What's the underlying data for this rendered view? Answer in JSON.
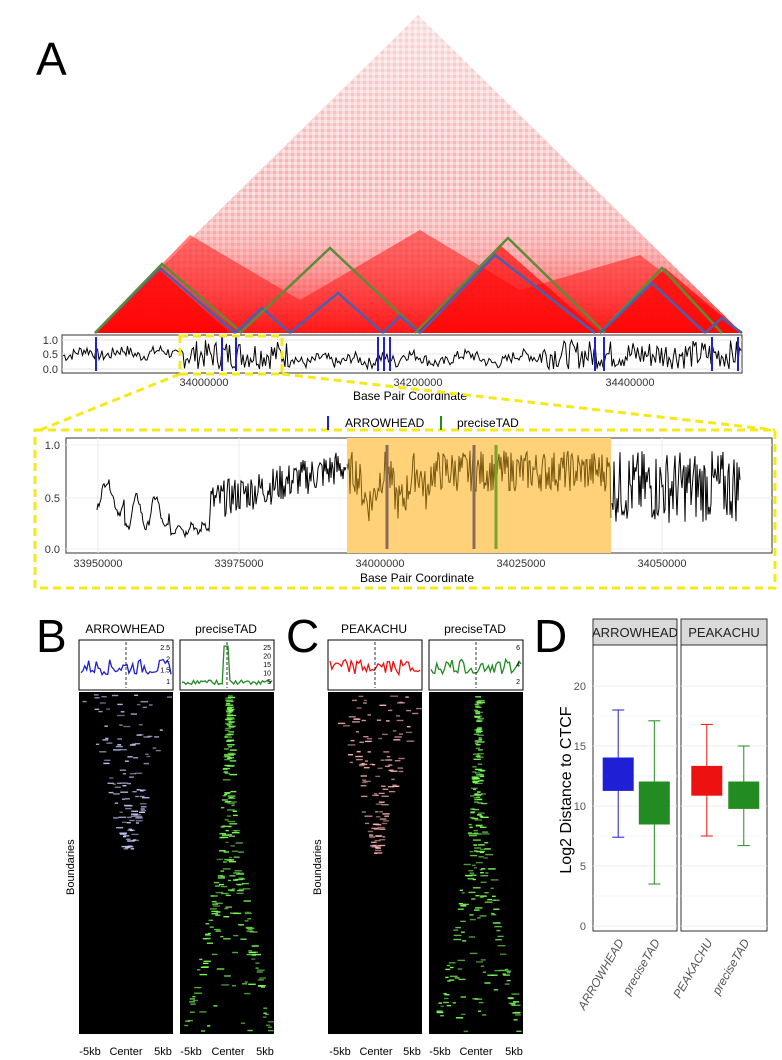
{
  "panel_labels": {
    "A": "A",
    "B": "B",
    "C": "C",
    "D": "D"
  },
  "colors": {
    "arrowhead": "#1f1fd6",
    "precisetad": "#228b22",
    "peakachu": "#ee1111",
    "highlight": "#ffd27a",
    "highlight_dark": "#7a5a10",
    "dash_yellow": "#f5e91a",
    "tad_blue": "#4a5fb0",
    "tad_green": "#5e8a3a"
  },
  "panelA": {
    "top_track": {
      "y_ticks": [
        "1.0",
        "0.5",
        "0.0"
      ],
      "x_ticks": [
        "34000000",
        "34200000",
        "34400000"
      ],
      "xlabel": "Base Pair Coordinate"
    },
    "legend": [
      {
        "label": "ARROWHEAD",
        "color": "#1f1fd6"
      },
      {
        "label": "preciseTAD",
        "color": "#228b22"
      }
    ],
    "zoom_track": {
      "y_ticks": [
        "1.0",
        "0.5",
        "0.0"
      ],
      "x_ticks": [
        "33950000",
        "33975000",
        "34000000",
        "34025000",
        "34050000"
      ],
      "xlabel": "Base Pair Coordinate"
    }
  },
  "panelB": {
    "left": {
      "title": "ARROWHEAD",
      "color": "#1f1fd6",
      "profile_ticks": [
        "2.5",
        "2",
        "1.5",
        "1"
      ]
    },
    "right": {
      "title": "preciseTAD",
      "color": "#228b22",
      "profile_ticks": [
        "25",
        "20",
        "15",
        "10",
        "5"
      ]
    },
    "ylabel": "Boundaries",
    "x_ticks_left": [
      "-5kb",
      "Center",
      "5kb"
    ],
    "x_ticks_right": [
      "-5kb",
      "Center",
      "5kb"
    ]
  },
  "panelC": {
    "left": {
      "title": "PEAKACHU",
      "color": "#ee1111",
      "profile_ticks": []
    },
    "right": {
      "title": "preciseTAD",
      "color": "#228b22",
      "profile_ticks": [
        "6",
        "4",
        "2"
      ]
    },
    "ylabel": "Boundaries",
    "x_ticks_left": [
      "-5kb",
      "Center",
      "5kb"
    ],
    "x_ticks_right": [
      "-5kb",
      "Center",
      "5kb"
    ]
  },
  "chart_data": {
    "type": "box",
    "ylabel": "Log2 Distance to CTCF",
    "ylim": [
      0,
      23
    ],
    "y_ticks": [
      "20",
      "15",
      "10",
      "5",
      "0"
    ],
    "facets": [
      {
        "strip": "ARROWHEAD",
        "boxes": [
          {
            "label": "ARROWHEAD",
            "color": "#1f1fd6",
            "min": 7.4,
            "q1": 11.3,
            "median": 12.5,
            "q3": 14.0,
            "max": 18.0
          },
          {
            "label": "preciseTAD",
            "color": "#228b22",
            "min": 3.5,
            "q1": 8.5,
            "median": 10.5,
            "q3": 12.0,
            "max": 17.1
          }
        ]
      },
      {
        "strip": "PEAKACHU",
        "boxes": [
          {
            "label": "PEAKACHU",
            "color": "#ee1111",
            "min": 7.5,
            "q1": 10.9,
            "median": 12.0,
            "q3": 13.3,
            "max": 16.8
          },
          {
            "label": "preciseTAD",
            "color": "#228b22",
            "min": 6.7,
            "q1": 9.8,
            "median": 11.0,
            "q3": 12.0,
            "max": 15.0
          }
        ]
      }
    ]
  }
}
